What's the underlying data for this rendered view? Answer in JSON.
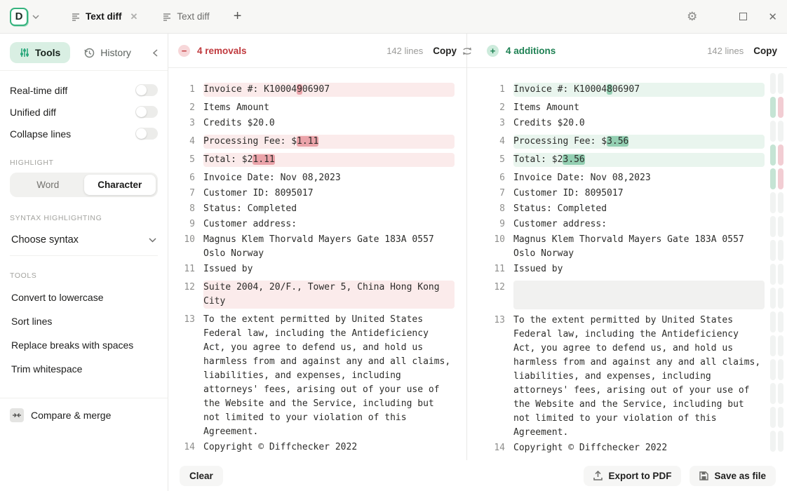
{
  "titlebar": {
    "logo_letter": "D",
    "tabs": [
      {
        "label": "Text diff",
        "active": true,
        "closable": true
      },
      {
        "label": "Text diff",
        "active": false,
        "closable": false
      }
    ]
  },
  "sidebar": {
    "tools_tab": "Tools",
    "history_tab": "History",
    "toggles": [
      {
        "label": "Real-time diff",
        "on": false
      },
      {
        "label": "Unified diff",
        "on": false
      },
      {
        "label": "Collapse lines",
        "on": false
      }
    ],
    "highlight_section": {
      "label": "HIGHLIGHT",
      "options": [
        "Word",
        "Character"
      ],
      "selected": "Character"
    },
    "syntax_section": {
      "label": "SYNTAX HIGHLIGHTING",
      "dropdown_value": "Choose syntax"
    },
    "tools_section": {
      "label": "TOOLS",
      "items": [
        "Convert to lowercase",
        "Sort lines",
        "Replace breaks with spaces",
        "Trim whitespace"
      ]
    },
    "compare_merge_label": "Compare & merge"
  },
  "left_pane": {
    "summary": "4 removals",
    "lines_count": "142 lines",
    "copy_label": "Copy",
    "lines": [
      {
        "n": "1",
        "type": "removed",
        "parts": [
          {
            "t": "Invoice #: K10004"
          },
          {
            "t": "9",
            "hl": true
          },
          {
            "t": "06907"
          }
        ]
      },
      {
        "n": "2",
        "type": "normal",
        "parts": [
          {
            "t": "Items Amount"
          }
        ]
      },
      {
        "n": "3",
        "type": "normal",
        "parts": [
          {
            "t": "Credits $20.0"
          }
        ]
      },
      {
        "n": "4",
        "type": "removed",
        "parts": [
          {
            "t": "Processing Fee: $"
          },
          {
            "t": "1.11",
            "hl": true
          }
        ]
      },
      {
        "n": "5",
        "type": "removed",
        "parts": [
          {
            "t": "Total: $2"
          },
          {
            "t": "1.11",
            "hl": true
          }
        ]
      },
      {
        "n": "6",
        "type": "normal",
        "parts": [
          {
            "t": "Invoice Date: Nov 08,2023"
          }
        ]
      },
      {
        "n": "7",
        "type": "normal",
        "parts": [
          {
            "t": "Customer ID: 8095017"
          }
        ]
      },
      {
        "n": "8",
        "type": "normal",
        "parts": [
          {
            "t": "Status: Completed"
          }
        ]
      },
      {
        "n": "9",
        "type": "normal",
        "parts": [
          {
            "t": "Customer address:"
          }
        ]
      },
      {
        "n": "10",
        "type": "normal",
        "parts": [
          {
            "t": "Magnus Klem Thorvald Mayers Gate 183A 0557 Oslo Norway"
          }
        ]
      },
      {
        "n": "11",
        "type": "normal",
        "parts": [
          {
            "t": "Issued by"
          }
        ]
      },
      {
        "n": "12",
        "type": "removed",
        "parts": [
          {
            "t": "Suite 2004, 20/F., Tower 5, China Hong Kong City"
          }
        ]
      },
      {
        "n": "13",
        "type": "normal",
        "parts": [
          {
            "t": "To the extent permitted by United States Federal law, including the Antideficiency Act, you agree to defend us, and hold us harmless from and against any and all claims, liabilities, and expenses, including attorneys' fees, arising out of your use of the Website and the Service, including but not limited to your violation of this Agreement."
          }
        ]
      },
      {
        "n": "14",
        "type": "normal",
        "parts": [
          {
            "t": "Copyright © Diffchecker 2022"
          }
        ]
      }
    ]
  },
  "right_pane": {
    "summary": "4 additions",
    "lines_count": "142 lines",
    "copy_label": "Copy",
    "lines": [
      {
        "n": "1",
        "type": "added",
        "parts": [
          {
            "t": "Invoice #: K10004"
          },
          {
            "t": "8",
            "hl": true
          },
          {
            "t": "06907"
          }
        ]
      },
      {
        "n": "2",
        "type": "normal",
        "parts": [
          {
            "t": "Items Amount"
          }
        ]
      },
      {
        "n": "3",
        "type": "normal",
        "parts": [
          {
            "t": "Credits $20.0"
          }
        ]
      },
      {
        "n": "4",
        "type": "added",
        "parts": [
          {
            "t": "Processing Fee: $"
          },
          {
            "t": "3.56",
            "hl": true
          }
        ]
      },
      {
        "n": "5",
        "type": "added",
        "parts": [
          {
            "t": "Total: $2"
          },
          {
            "t": "3.56",
            "hl": true
          }
        ]
      },
      {
        "n": "6",
        "type": "normal",
        "parts": [
          {
            "t": "Invoice Date: Nov 08,2023"
          }
        ]
      },
      {
        "n": "7",
        "type": "normal",
        "parts": [
          {
            "t": "Customer ID: 8095017"
          }
        ]
      },
      {
        "n": "8",
        "type": "normal",
        "parts": [
          {
            "t": "Status: Completed"
          }
        ]
      },
      {
        "n": "9",
        "type": "normal",
        "parts": [
          {
            "t": "Customer address:"
          }
        ]
      },
      {
        "n": "10",
        "type": "normal",
        "parts": [
          {
            "t": "Magnus Klem Thorvald Mayers Gate 183A 0557 Oslo Norway"
          }
        ]
      },
      {
        "n": "11",
        "type": "normal",
        "parts": [
          {
            "t": "Issued by"
          }
        ]
      },
      {
        "n": "12",
        "type": "empty",
        "parts": []
      },
      {
        "n": "13",
        "type": "normal",
        "parts": [
          {
            "t": "To the extent permitted by United States Federal law, including the Antideficiency Act, you agree to defend us, and hold us harmless from and against any and all claims, liabilities, and expenses, including attorneys' fees, arising out of your use of the Website and the Service, including but not limited to your violation of this Agreement."
          }
        ]
      },
      {
        "n": "14",
        "type": "normal",
        "parts": [
          {
            "t": "Copyright © Diffchecker 2022"
          }
        ]
      }
    ]
  },
  "minimap": {
    "segments": [
      "plain",
      "change",
      "plain",
      "change",
      "change",
      "plain",
      "plain",
      "plain",
      "plain",
      "plain",
      "plain",
      "plain",
      "plain",
      "plain",
      "plain",
      "plain"
    ]
  },
  "footer": {
    "clear_label": "Clear",
    "export_label": "Export to PDF",
    "save_label": "Save as file"
  },
  "colors": {
    "accent_green": "#36b37e",
    "removal_text": "#c03a3e",
    "addition_text": "#1e8153",
    "removed_line_bg": "#fbebeb",
    "added_line_bg": "#e9f5ee",
    "removed_char_bg": "#eaa3a9",
    "added_char_bg": "#93cfb2",
    "minimap_green": "#c5e4d4",
    "minimap_pink": "#f2cdd3",
    "minimap_plain": "#f1f3f2"
  }
}
